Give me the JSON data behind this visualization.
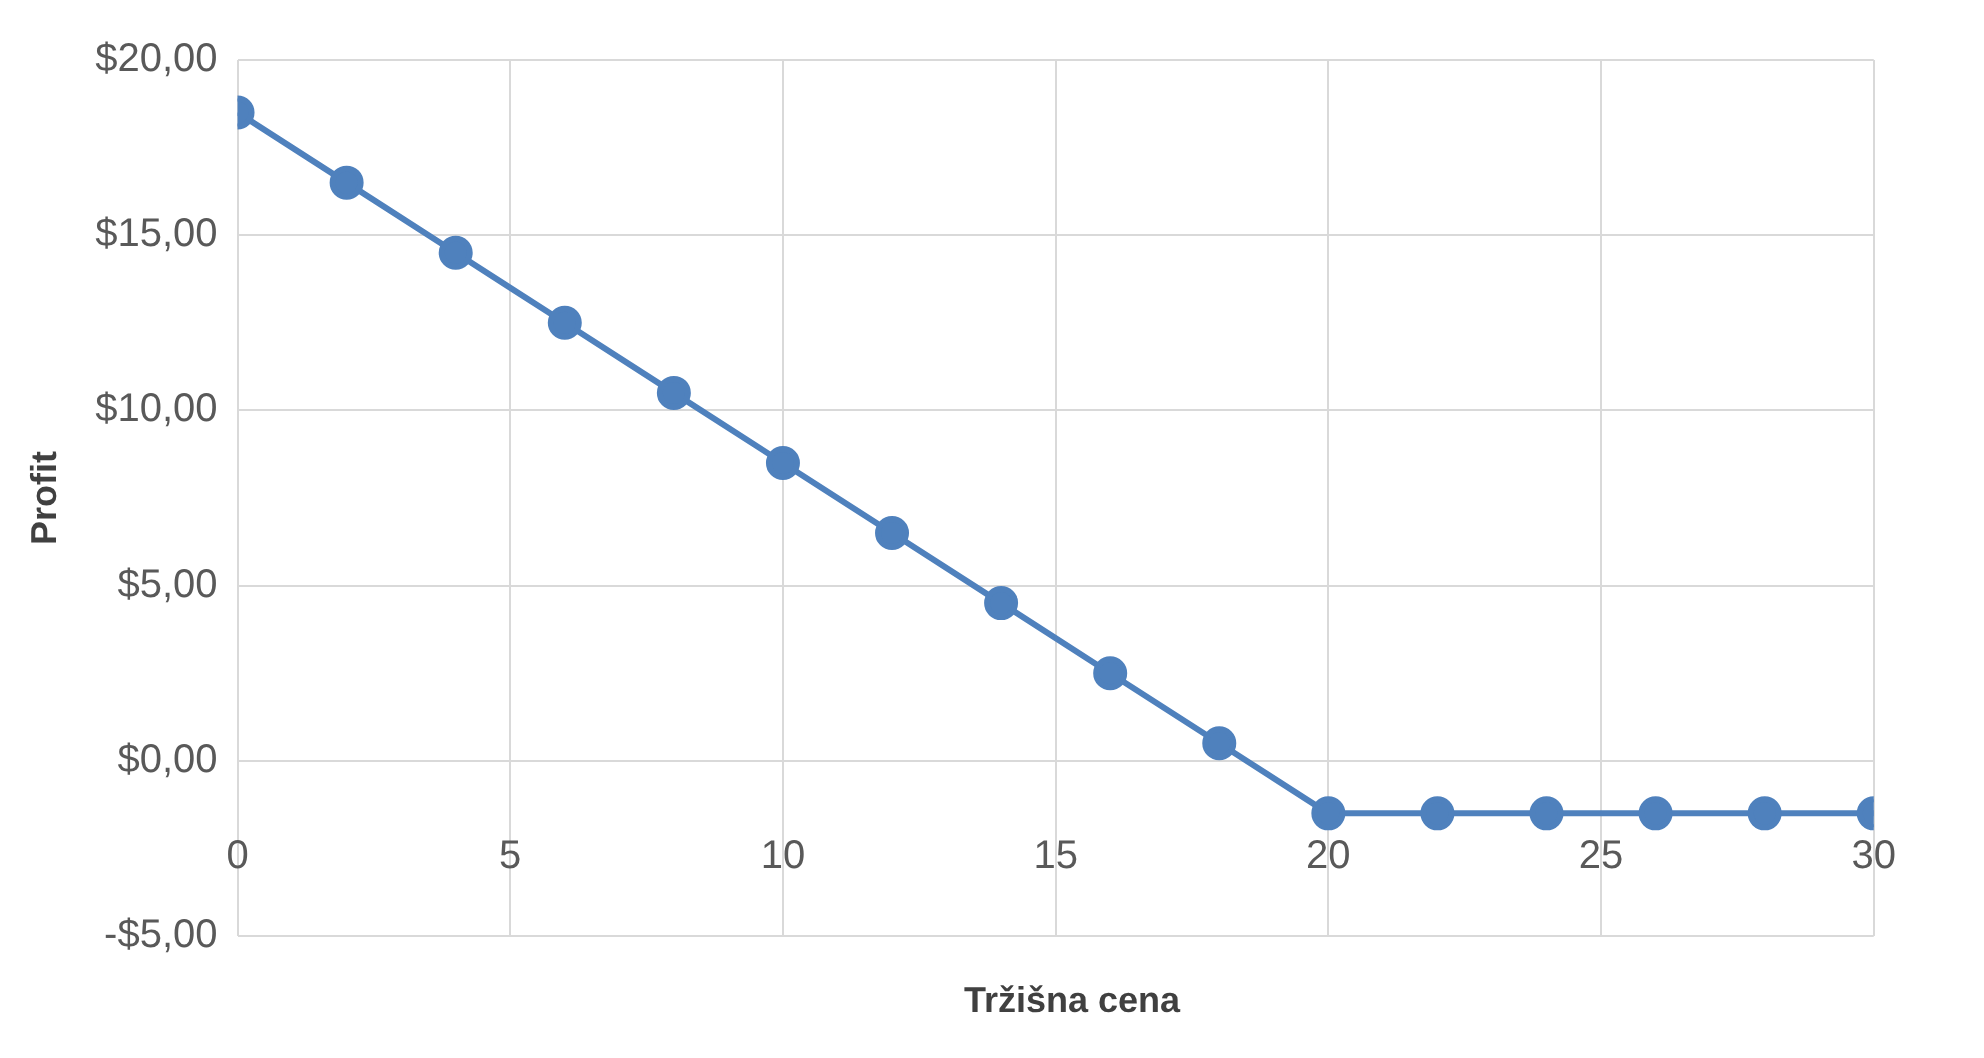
{
  "chart_data": {
    "type": "line",
    "xlabel": "Tržišna cena",
    "ylabel": "Profit",
    "x": [
      0,
      2,
      4,
      6,
      8,
      10,
      12,
      14,
      16,
      18,
      20,
      22,
      24,
      26,
      28,
      30
    ],
    "series": [
      {
        "color": "#4f81bd",
        "values": [
          18.5,
          16.5,
          14.5,
          12.5,
          10.5,
          8.5,
          6.5,
          4.5,
          2.5,
          0.5,
          -1.5,
          -1.5,
          -1.5,
          -1.5,
          -1.5,
          -1.5
        ]
      }
    ],
    "xlim": [
      0,
      30
    ],
    "xticks": [
      0,
      5,
      10,
      15,
      20,
      25,
      30
    ],
    "ylim": [
      -5,
      20
    ],
    "yticks": [
      {
        "value": -5,
        "label": "-$5,00"
      },
      {
        "value": 0,
        "label": "$0,00"
      },
      {
        "value": 5,
        "label": "$5,00"
      },
      {
        "value": 10,
        "label": "$10,00"
      },
      {
        "value": 15,
        "label": "$15,00"
      },
      {
        "value": 20,
        "label": "$20,00"
      }
    ],
    "grid": true,
    "marker": "circle",
    "line_style": "solid"
  }
}
